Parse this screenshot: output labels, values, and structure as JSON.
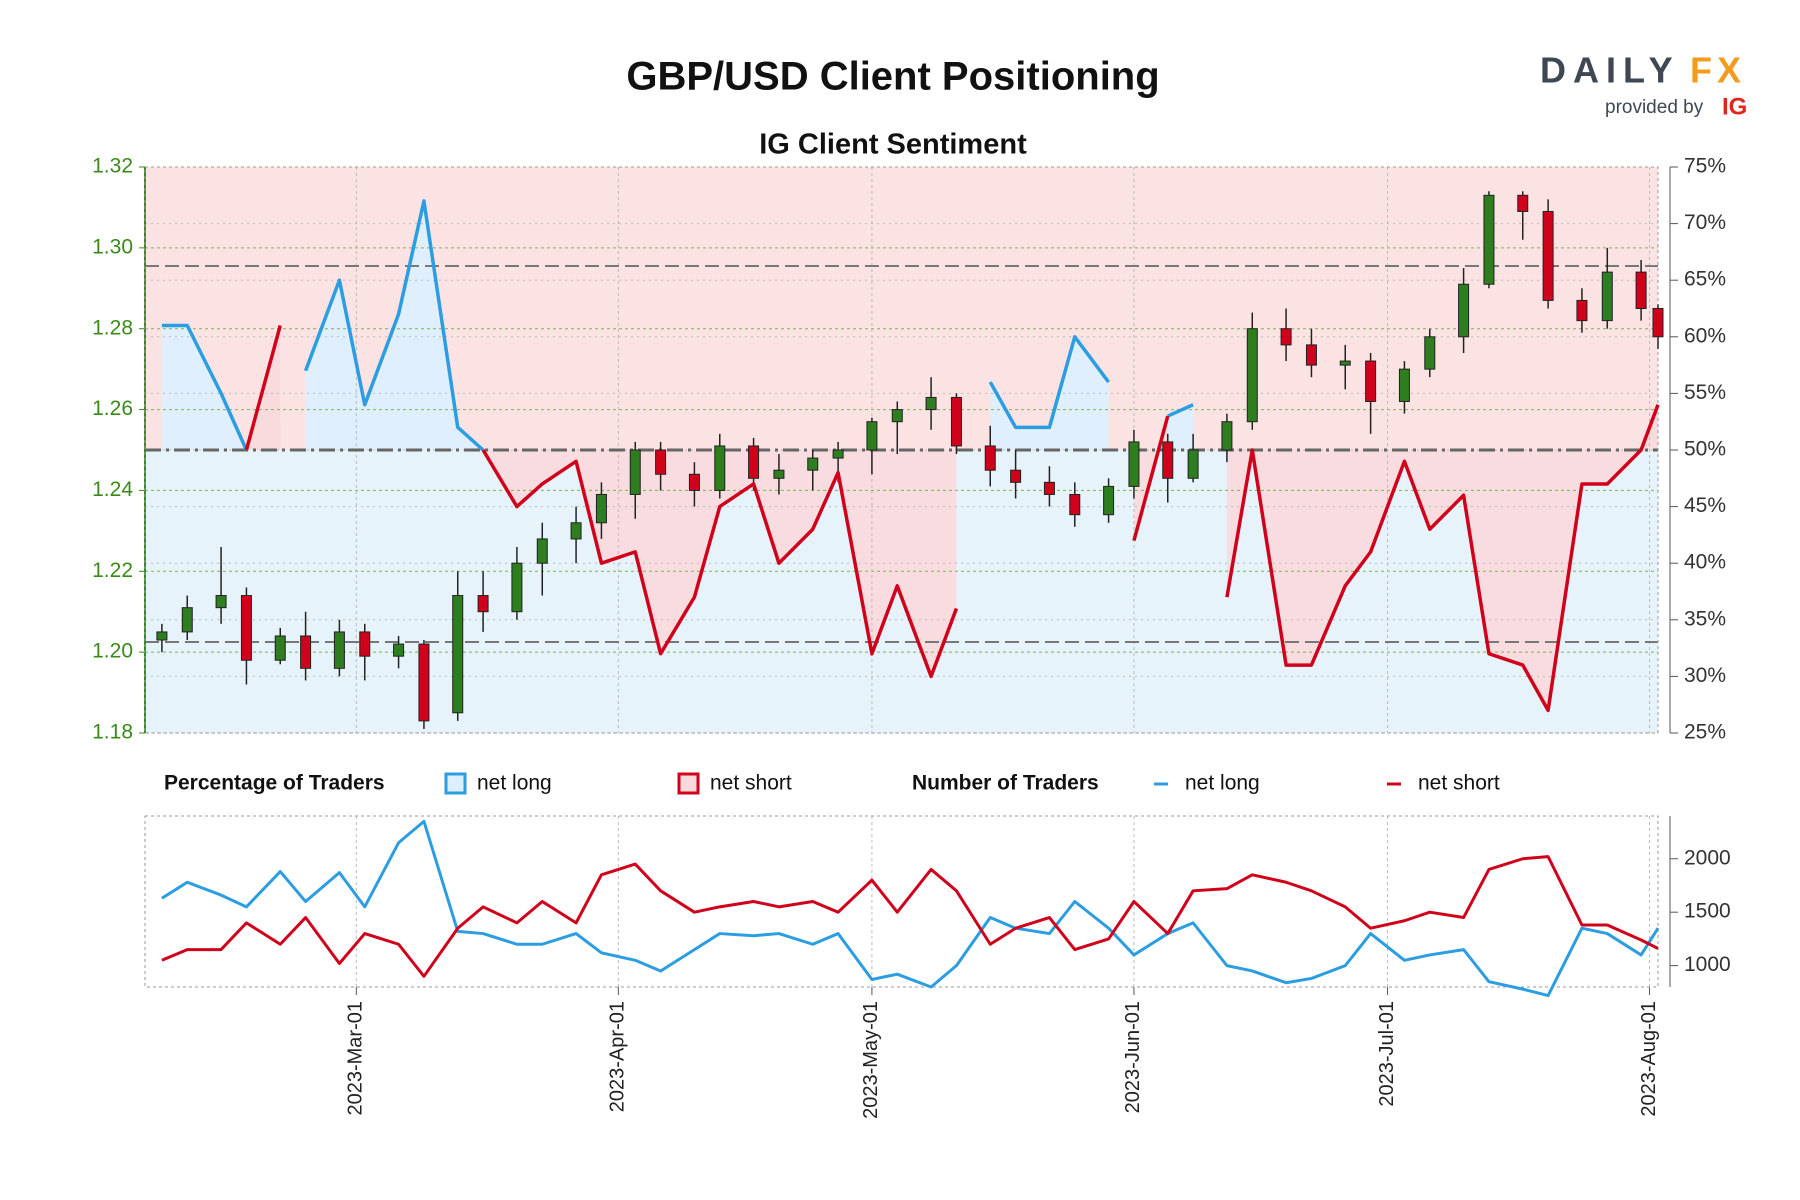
{
  "logo": {
    "brand_left": "DAILY",
    "brand_right": "FX",
    "provided_by": "provided by",
    "ig": "IG"
  },
  "chart_data": [
    {
      "type": "candlestick",
      "title": "GBP/USD Client Positioning",
      "subtitle": "IG Client Sentiment",
      "x": [
        "2023-02-06",
        "2023-02-09",
        "2023-02-13",
        "2023-02-16",
        "2023-02-20",
        "2023-02-23",
        "2023-02-27",
        "2023-03-02",
        "2023-03-06",
        "2023-03-09",
        "2023-03-13",
        "2023-03-16",
        "2023-03-20",
        "2023-03-23",
        "2023-03-27",
        "2023-03-30",
        "2023-04-03",
        "2023-04-06",
        "2023-04-10",
        "2023-04-13",
        "2023-04-17",
        "2023-04-20",
        "2023-04-24",
        "2023-04-27",
        "2023-05-01",
        "2023-05-04",
        "2023-05-08",
        "2023-05-11",
        "2023-05-15",
        "2023-05-18",
        "2023-05-22",
        "2023-05-25",
        "2023-05-29",
        "2023-06-01",
        "2023-06-05",
        "2023-06-08",
        "2023-06-12",
        "2023-06-15",
        "2023-06-19",
        "2023-06-22",
        "2023-06-26",
        "2023-06-29",
        "2023-07-03",
        "2023-07-06",
        "2023-07-10",
        "2023-07-13",
        "2023-07-17",
        "2023-07-20",
        "2023-07-24",
        "2023-07-27",
        "2023-07-31",
        "2023-08-02"
      ],
      "ohlc": {
        "open": [
          1.203,
          1.205,
          1.211,
          1.214,
          1.198,
          1.204,
          1.196,
          1.205,
          1.199,
          1.202,
          1.185,
          1.214,
          1.21,
          1.222,
          1.228,
          1.232,
          1.239,
          1.25,
          1.244,
          1.24,
          1.251,
          1.243,
          1.245,
          1.248,
          1.25,
          1.257,
          1.26,
          1.263,
          1.251,
          1.245,
          1.242,
          1.239,
          1.234,
          1.241,
          1.252,
          1.243,
          1.25,
          1.257,
          1.28,
          1.276,
          1.271,
          1.272,
          1.262,
          1.27,
          1.278,
          1.291,
          1.313,
          1.309,
          1.287,
          1.282,
          1.294,
          1.285
        ],
        "high": [
          1.207,
          1.214,
          1.226,
          1.216,
          1.206,
          1.21,
          1.208,
          1.207,
          1.204,
          1.203,
          1.22,
          1.22,
          1.226,
          1.232,
          1.236,
          1.242,
          1.252,
          1.252,
          1.247,
          1.254,
          1.253,
          1.249,
          1.25,
          1.252,
          1.258,
          1.262,
          1.268,
          1.264,
          1.256,
          1.25,
          1.246,
          1.242,
          1.243,
          1.255,
          1.254,
          1.254,
          1.259,
          1.284,
          1.285,
          1.28,
          1.276,
          1.274,
          1.272,
          1.28,
          1.295,
          1.314,
          1.314,
          1.312,
          1.29,
          1.3,
          1.297,
          1.286
        ],
        "low": [
          1.2,
          1.203,
          1.207,
          1.192,
          1.197,
          1.193,
          1.194,
          1.193,
          1.196,
          1.181,
          1.183,
          1.205,
          1.208,
          1.214,
          1.222,
          1.228,
          1.233,
          1.24,
          1.236,
          1.238,
          1.24,
          1.239,
          1.24,
          1.242,
          1.244,
          1.249,
          1.255,
          1.249,
          1.241,
          1.238,
          1.236,
          1.231,
          1.232,
          1.238,
          1.237,
          1.242,
          1.247,
          1.255,
          1.272,
          1.268,
          1.265,
          1.254,
          1.259,
          1.268,
          1.274,
          1.29,
          1.302,
          1.285,
          1.279,
          1.28,
          1.282,
          1.275
        ],
        "close": [
          1.205,
          1.211,
          1.214,
          1.198,
          1.204,
          1.196,
          1.205,
          1.199,
          1.202,
          1.183,
          1.214,
          1.21,
          1.222,
          1.228,
          1.232,
          1.239,
          1.25,
          1.244,
          1.24,
          1.251,
          1.243,
          1.245,
          1.248,
          1.25,
          1.257,
          1.26,
          1.263,
          1.251,
          1.245,
          1.242,
          1.239,
          1.234,
          1.241,
          1.252,
          1.243,
          1.25,
          1.257,
          1.28,
          1.276,
          1.271,
          1.272,
          1.262,
          1.27,
          1.278,
          1.291,
          1.313,
          1.309,
          1.287,
          1.282,
          1.294,
          1.285,
          1.278
        ]
      },
      "up_color": "#2e7d1f",
      "down_color": "#d0021b",
      "ylim": [
        1.18,
        1.32
      ],
      "yticks": [
        1.18,
        {
          "value": 1.2,
          "label": "1.20"
        },
        1.22,
        1.24,
        1.26,
        1.28,
        {
          "value": 1.3,
          "label": "1.30"
        },
        1.32
      ],
      "y2lim": [
        25,
        75
      ],
      "y2ticks": [
        {
          "value": 25,
          "label": "25%"
        },
        {
          "value": 30,
          "label": "30%"
        },
        {
          "value": 35,
          "label": "35%"
        },
        {
          "value": 40,
          "label": "40%"
        },
        {
          "value": 45,
          "label": "45%"
        },
        {
          "value": 50,
          "label": "50%"
        },
        {
          "value": 55,
          "label": "55%"
        },
        {
          "value": 60,
          "label": "60%"
        },
        {
          "value": 65,
          "label": "65%"
        },
        {
          "value": 70,
          "label": "70%"
        },
        {
          "value": 75,
          "label": "75%"
        }
      ],
      "xlim": [
        "2023-02-04",
        "2023-08-02"
      ],
      "xticks": [
        {
          "value": "2023-03-01",
          "label": "2023-Mar-01"
        },
        {
          "value": "2023-04-01",
          "label": "2023-Apr-01"
        },
        {
          "value": "2023-05-01",
          "label": "2023-May-01"
        },
        {
          "value": "2023-06-01",
          "label": "2023-Jun-01"
        },
        {
          "value": "2023-07-01",
          "label": "2023-Jul-01"
        },
        {
          "value": "2023-08-01",
          "label": "2023-Aug-01"
        }
      ],
      "reference_lines": [
        1.2955,
        1.2025
      ],
      "y2_reference": 50,
      "legend_title": "Percentage of Traders",
      "series": [
        {
          "name": "net long",
          "axis": "y2",
          "color": "#2b9de0",
          "fill": "#dcefff",
          "values": [
            61,
            61,
            55,
            50,
            null,
            57,
            65,
            54,
            62,
            72,
            52,
            50,
            null,
            null,
            null,
            null,
            null,
            null,
            null,
            null,
            null,
            null,
            null,
            null,
            null,
            null,
            null,
            null,
            56,
            52,
            52,
            60,
            56,
            null,
            53,
            54,
            null,
            null,
            null,
            null,
            null,
            null,
            null,
            null,
            null,
            null,
            null,
            null,
            null,
            null,
            null,
            null
          ]
        },
        {
          "name": "net short",
          "axis": "y2",
          "color": "#d0021b",
          "fill": "#f9d9db",
          "values": [
            null,
            null,
            null,
            50,
            61,
            null,
            null,
            null,
            null,
            null,
            null,
            50,
            45,
            47,
            49,
            40,
            41,
            32,
            37,
            45,
            47,
            40,
            43,
            48,
            32,
            38,
            30,
            36,
            null,
            null,
            null,
            null,
            null,
            42,
            53,
            null,
            37,
            50,
            31,
            31,
            38,
            41,
            49,
            43,
            46,
            32,
            31,
            27,
            47,
            47,
            50,
            54
          ]
        }
      ]
    },
    {
      "type": "line",
      "legend_title": "Number of Traders",
      "x": [
        "2023-02-06",
        "2023-02-09",
        "2023-02-13",
        "2023-02-16",
        "2023-02-20",
        "2023-02-23",
        "2023-02-27",
        "2023-03-02",
        "2023-03-06",
        "2023-03-09",
        "2023-03-13",
        "2023-03-16",
        "2023-03-20",
        "2023-03-23",
        "2023-03-27",
        "2023-03-30",
        "2023-04-03",
        "2023-04-06",
        "2023-04-10",
        "2023-04-13",
        "2023-04-17",
        "2023-04-20",
        "2023-04-24",
        "2023-04-27",
        "2023-05-01",
        "2023-05-04",
        "2023-05-08",
        "2023-05-11",
        "2023-05-15",
        "2023-05-18",
        "2023-05-22",
        "2023-05-25",
        "2023-05-29",
        "2023-06-01",
        "2023-06-05",
        "2023-06-08",
        "2023-06-12",
        "2023-06-15",
        "2023-06-19",
        "2023-06-22",
        "2023-06-26",
        "2023-06-29",
        "2023-07-03",
        "2023-07-06",
        "2023-07-10",
        "2023-07-13",
        "2023-07-17",
        "2023-07-20",
        "2023-07-24",
        "2023-07-27",
        "2023-07-31",
        "2023-08-02"
      ],
      "xlim": [
        "2023-02-04",
        "2023-08-02"
      ],
      "ylim": [
        800,
        2400
      ],
      "yticks": [
        1000,
        1500,
        2000
      ],
      "series": [
        {
          "name": "net long",
          "color": "#2b9de0",
          "values": [
            1630,
            1780,
            1660,
            1550,
            1880,
            1600,
            1870,
            1550,
            2150,
            2350,
            1320,
            1300,
            1200,
            1200,
            1300,
            1120,
            1050,
            950,
            1150,
            1300,
            1280,
            1300,
            1200,
            1300,
            870,
            920,
            800,
            1000,
            1450,
            1350,
            1300,
            1600,
            1350,
            1100,
            1300,
            1400,
            1000,
            950,
            840,
            880,
            1000,
            1300,
            1050,
            1100,
            1150,
            850,
            780,
            720,
            1350,
            1300,
            1100,
            1350
          ]
        },
        {
          "name": "net short",
          "color": "#d0021b",
          "values": [
            1050,
            1150,
            1150,
            1400,
            1200,
            1450,
            1020,
            1300,
            1200,
            900,
            1350,
            1550,
            1400,
            1600,
            1400,
            1850,
            1950,
            1700,
            1500,
            1550,
            1600,
            1550,
            1600,
            1500,
            1800,
            1500,
            1900,
            1700,
            1200,
            1350,
            1450,
            1150,
            1250,
            1600,
            1300,
            1700,
            1720,
            1850,
            1780,
            1700,
            1550,
            1350,
            1420,
            1500,
            1450,
            1900,
            2000,
            2020,
            1380,
            1380,
            1240,
            1160
          ]
        }
      ]
    }
  ]
}
